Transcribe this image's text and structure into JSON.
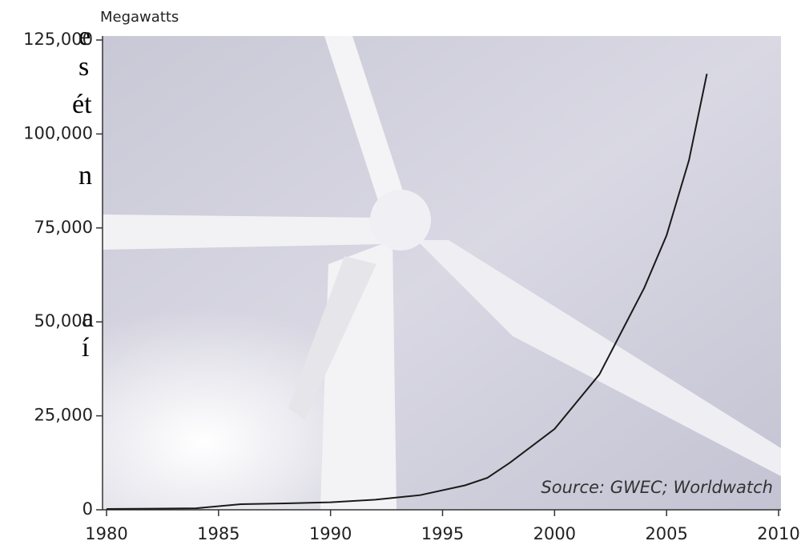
{
  "side_text_fragments": [
    "e",
    "s",
    "ét",
    "n",
    "a",
    "í"
  ],
  "chart_data": {
    "type": "line",
    "y_axis_label": "Megawatts",
    "annotation": "Source: GWEC; Worldwatch",
    "x": [
      1980,
      1982,
      1984,
      1986,
      1988,
      1990,
      1992,
      1994,
      1996,
      1997,
      1998,
      2000,
      2002,
      2004,
      2005,
      2006,
      2006.8
    ],
    "series": [
      {
        "name": "Megawatts",
        "color": "#1a1a1a",
        "values": [
          200,
          300,
          400,
          1500,
          1700,
          2000,
          2700,
          3900,
          6500,
          8500,
          12500,
          21500,
          36000,
          59000,
          73000,
          93000,
          116000
        ]
      }
    ],
    "xlim": [
      1980,
      2010
    ],
    "xticks": [
      1980,
      1985,
      1990,
      1995,
      2000,
      2005,
      2010
    ],
    "ylim": [
      0,
      125000
    ],
    "yticks": [
      0,
      {
        "value": 25000,
        "label": "25,000"
      },
      {
        "value": 50000,
        "label": "50,000"
      },
      {
        "value": 75000,
        "label": "75,000"
      },
      {
        "value": 100000,
        "label": "100,000"
      },
      {
        "value": 125000,
        "label": "125,000"
      }
    ]
  }
}
